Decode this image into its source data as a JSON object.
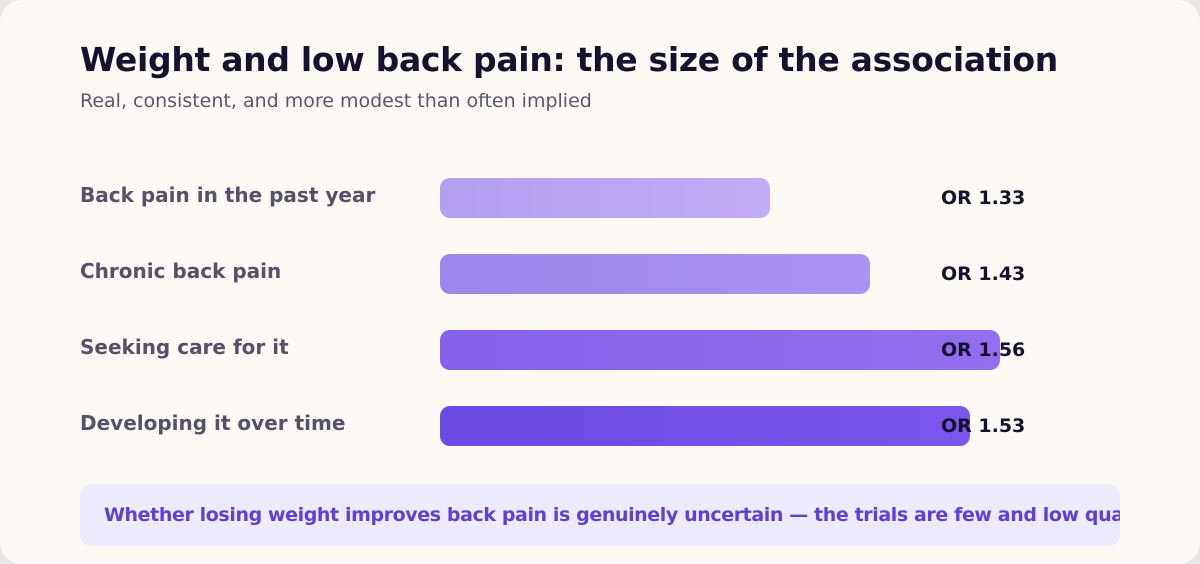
{
  "header": {
    "title": "Weight and low back pain: the size of the association",
    "subtitle": "Real, consistent, and more modest than often implied"
  },
  "chart_data": {
    "type": "bar",
    "orientation": "horizontal",
    "title": "Weight and low back pain: the size of the association",
    "subtitle": "Real, consistent, and more modest than often implied",
    "categories": [
      "Back pain in the past year",
      "Chronic back pain",
      "Seeking care for it",
      "Developing it over time"
    ],
    "values": [
      1.33,
      1.43,
      1.56,
      1.53
    ],
    "value_labels": [
      "OR 1.33",
      "OR 1.43",
      "OR 1.56",
      "OR 1.53"
    ],
    "xlim": [
      1.0,
      1.56
    ],
    "grid": false,
    "legend": "none",
    "colors": [
      [
        "#b39ff0",
        "#c2acf7"
      ],
      [
        "#9c86ec",
        "#ab93f4"
      ],
      [
        "#8461e8",
        "#936fef"
      ],
      [
        "#6a4ae3",
        "#7b57ec"
      ]
    ]
  },
  "note": {
    "text": "Whether losing weight improves back pain is genuinely uncertain — the trials are few and low quality"
  }
}
